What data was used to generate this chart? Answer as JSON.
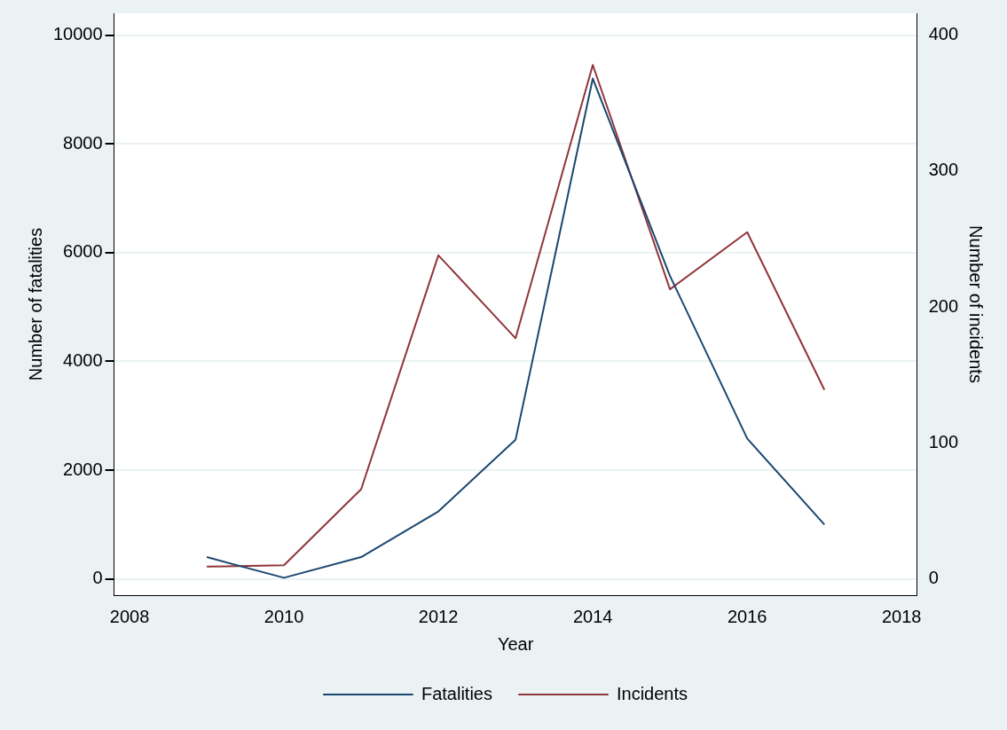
{
  "chart_data": {
    "type": "line",
    "xlabel": "Year",
    "ylabel": "Number of fatalities",
    "y2label": "Number of incidents",
    "x": [
      2009,
      2010,
      2011,
      2012,
      2013,
      2014,
      2015,
      2016,
      2017
    ],
    "series": [
      {
        "name": "Fatalities",
        "color": "#1a476f",
        "values": [
          400,
          20,
          400,
          1240,
          2560,
          9200,
          5570,
          2580,
          1000
        ]
      },
      {
        "name": "Incidents",
        "color": "#90353b",
        "axis": "y2",
        "values": [
          9,
          10,
          66,
          238,
          177,
          378,
          213,
          255,
          139
        ]
      }
    ],
    "xlim": [
      2007.8,
      2018.2
    ],
    "xticks": [
      2008,
      2010,
      2012,
      2014,
      2016,
      2018
    ],
    "ylim": [
      -300,
      10400
    ],
    "yticks": [
      0,
      2000,
      4000,
      6000,
      8000,
      10000
    ],
    "y2lim": [
      -12,
      416
    ],
    "y2ticks": [
      0,
      100,
      200,
      300,
      400
    ],
    "grid": "y",
    "legend": "bottom",
    "marker": "none",
    "line_style": "solid"
  }
}
